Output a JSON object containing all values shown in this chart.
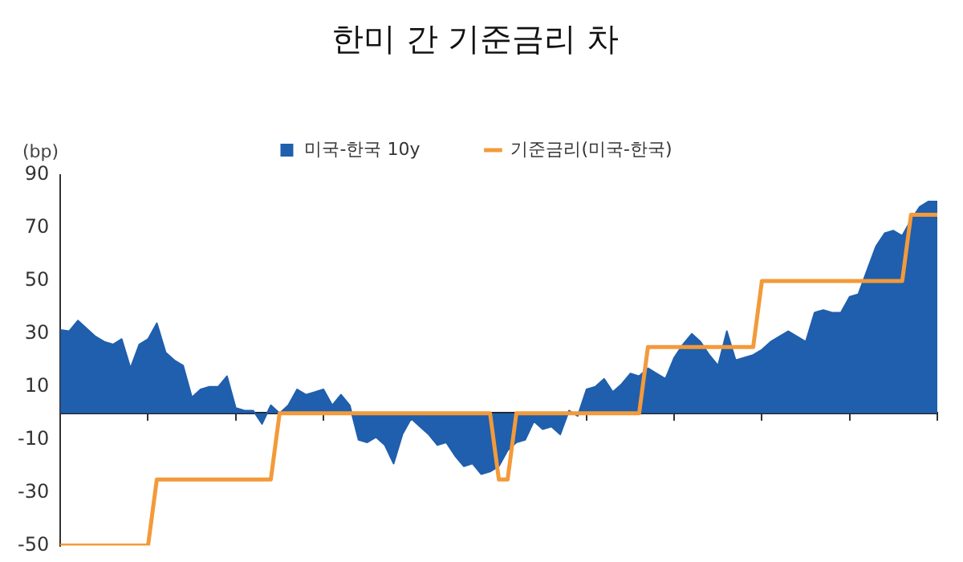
{
  "chart_data": {
    "type": "line",
    "title": "한미 간 기준금리 차",
    "ylabel": "(bp)",
    "categories": [
      null,
      null,
      null,
      null,
      null,
      null,
      null,
      null,
      null,
      null,
      null,
      null,
      null,
      null,
      null,
      null,
      null,
      null,
      null,
      null,
      null,
      null,
      null,
      null,
      null,
      null,
      null,
      null,
      null,
      null,
      null,
      null,
      null,
      null,
      null,
      null,
      null,
      null,
      null,
      null,
      null,
      null,
      null,
      null,
      null,
      null,
      null,
      null,
      null,
      null,
      null,
      null,
      null,
      null,
      null,
      null,
      null,
      null,
      null,
      null,
      null,
      null,
      null,
      null,
      null,
      null,
      null,
      null,
      null,
      null,
      null,
      null,
      null,
      null,
      null,
      null,
      null,
      null,
      null,
      null,
      null,
      null,
      null,
      null,
      null,
      null,
      null,
      null,
      null,
      null,
      null,
      null,
      null,
      null,
      null,
      null,
      null,
      null,
      null,
      null,
      null
    ],
    "series": [
      {
        "name": "미국-한국 10y",
        "type": "area",
        "color": "#1f5fad",
        "values": [
          31.5,
          31,
          35,
          32,
          29,
          27,
          26,
          28,
          17,
          26,
          28,
          34,
          23,
          20,
          18,
          6,
          9,
          10,
          10,
          14,
          2,
          1,
          1,
          -4,
          3,
          0,
          3,
          9,
          7,
          8,
          9,
          3,
          7,
          3,
          -10,
          -11,
          -9,
          -12,
          -19,
          -8,
          -2,
          -5,
          -8,
          -12,
          -11,
          -16,
          -20,
          -19,
          -23,
          -22,
          -20,
          -14,
          -11,
          -10,
          -3,
          -6,
          -5,
          -8,
          1,
          -1,
          9,
          10,
          13,
          8,
          11,
          15,
          14,
          17,
          15,
          13,
          21,
          26,
          30,
          27,
          22,
          18,
          31,
          20,
          21,
          22,
          24,
          27,
          29,
          31,
          29,
          27,
          38,
          39,
          38,
          38,
          44,
          45,
          54,
          63,
          68,
          69,
          67,
          73,
          78,
          80,
          80
        ]
      },
      {
        "name": "기준금리(미국-한국)",
        "type": "line",
        "color": "#f39a3a",
        "values": [
          -50,
          -50,
          -50,
          -50,
          -50,
          -50,
          -50,
          -50,
          -50,
          -50,
          -50,
          -25,
          -25,
          -25,
          -25,
          -25,
          -25,
          -25,
          -25,
          -25,
          -25,
          -25,
          -25,
          -25,
          -25,
          0,
          0,
          0,
          0,
          0,
          0,
          0,
          0,
          0,
          0,
          0,
          0,
          0,
          0,
          0,
          0,
          0,
          0,
          0,
          0,
          0,
          0,
          0,
          0,
          0,
          -25,
          -25,
          0,
          0,
          0,
          0,
          0,
          0,
          0,
          0,
          0,
          0,
          0,
          0,
          0,
          0,
          0,
          25,
          25,
          25,
          25,
          25,
          25,
          25,
          25,
          25,
          25,
          25,
          25,
          25,
          50,
          50,
          50,
          50,
          50,
          50,
          50,
          50,
          50,
          50,
          50,
          50,
          50,
          50,
          50,
          50,
          50,
          75,
          75,
          75,
          75
        ]
      }
    ],
    "ylim": [
      -50,
      90
    ],
    "yticks": [
      -50,
      -30,
      -10,
      10,
      30,
      50,
      70,
      90
    ],
    "grid": false,
    "legend": "top",
    "tick_labels": "y",
    "marker": "none",
    "line_style": "solid"
  }
}
